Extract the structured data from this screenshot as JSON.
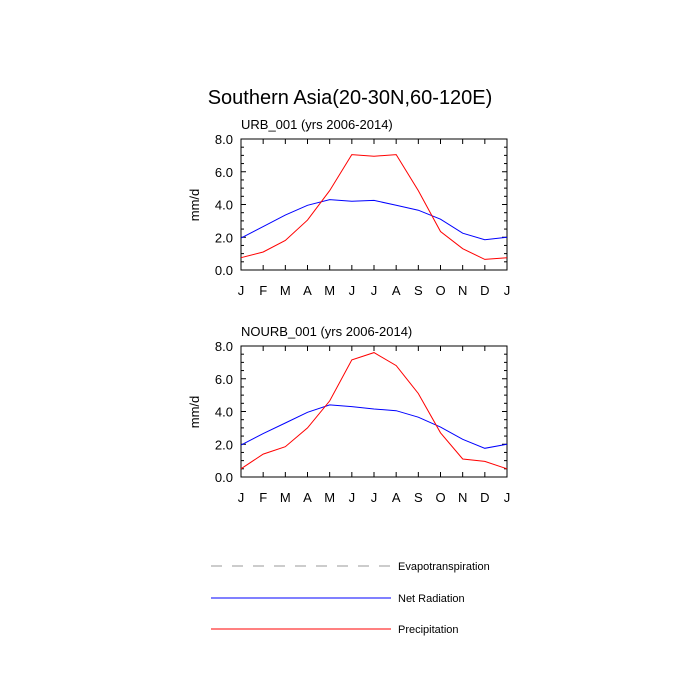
{
  "title": "Southern Asia(20-30N,60-120E)",
  "months": [
    "J",
    "F",
    "M",
    "A",
    "M",
    "J",
    "J",
    "A",
    "S",
    "O",
    "N",
    "D",
    "J"
  ],
  "yticks": [
    "0.0",
    "2.0",
    "4.0",
    "6.0",
    "8.0"
  ],
  "legend": [
    {
      "name": "Evapotranspiration",
      "color": "#999999",
      "dash": "dashed"
    },
    {
      "name": "Net Radiation",
      "color": "#0000ff",
      "dash": "solid"
    },
    {
      "name": "Precipitation",
      "color": "#ff0000",
      "dash": "solid"
    }
  ],
  "chart_data": [
    {
      "type": "line",
      "title": "URB_001 (yrs 2006-2014)",
      "ylabel": "mm/d",
      "categories": [
        "J",
        "F",
        "M",
        "A",
        "M",
        "J",
        "J",
        "A",
        "S",
        "O",
        "N",
        "D",
        "J"
      ],
      "ylim": [
        0,
        8
      ],
      "series": [
        {
          "name": "Net Radiation",
          "color": "#0000ff",
          "values": [
            1.95,
            2.65,
            3.35,
            3.95,
            4.3,
            4.2,
            4.25,
            3.95,
            3.65,
            3.1,
            2.25,
            1.85,
            2.0
          ]
        },
        {
          "name": "Precipitation",
          "color": "#ff0000",
          "values": [
            0.75,
            1.1,
            1.8,
            3.05,
            4.85,
            7.05,
            6.95,
            7.05,
            4.85,
            2.35,
            1.3,
            0.65,
            0.75
          ]
        }
      ]
    },
    {
      "type": "line",
      "title": "NOURB_001 (yrs 2006-2014)",
      "ylabel": "mm/d",
      "categories": [
        "J",
        "F",
        "M",
        "A",
        "M",
        "J",
        "J",
        "A",
        "S",
        "O",
        "N",
        "D",
        "J"
      ],
      "ylim": [
        0,
        8
      ],
      "series": [
        {
          "name": "Net Radiation",
          "color": "#0000ff",
          "values": [
            1.95,
            2.65,
            3.3,
            3.95,
            4.4,
            4.3,
            4.15,
            4.05,
            3.65,
            3.05,
            2.3,
            1.75,
            2.0
          ]
        },
        {
          "name": "Precipitation",
          "color": "#ff0000",
          "values": [
            0.5,
            1.4,
            1.85,
            3.0,
            4.65,
            7.15,
            7.6,
            6.8,
            5.1,
            2.7,
            1.1,
            0.95,
            0.5
          ]
        }
      ]
    }
  ]
}
